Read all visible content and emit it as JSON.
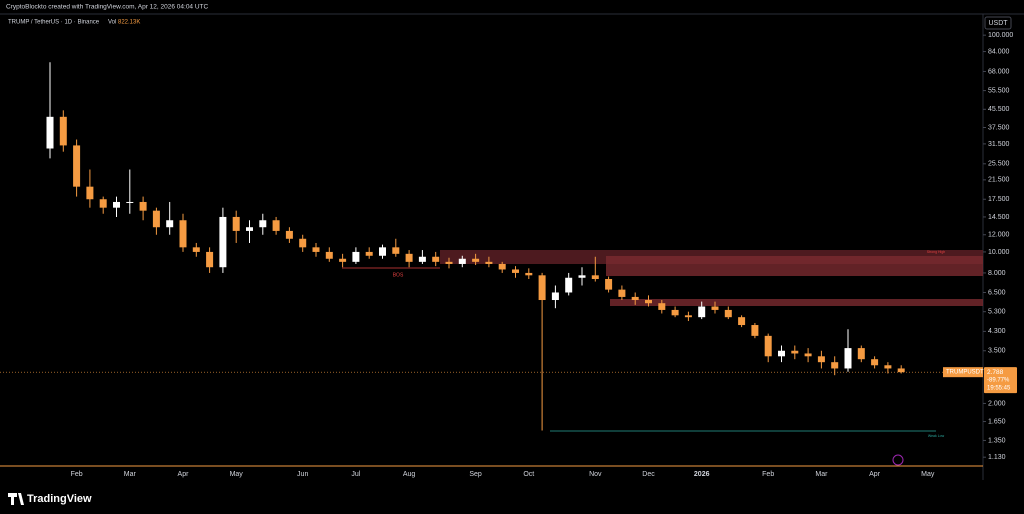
{
  "header": {
    "credit": "CryptoBlockto created with TradingView.com, Apr 12, 2026 04:04 UTC",
    "symbol": "TRUMP / TetherUS · 1D · Binance",
    "volume_label": "Vol",
    "volume": "822.13K"
  },
  "chart_data": {
    "type": "candlestick",
    "categories": [
      null,
      null,
      "Feb",
      null,
      null,
      null,
      "Mar",
      null,
      null,
      null,
      "Apr",
      null,
      null,
      null,
      "May",
      null,
      null,
      null,
      null,
      "Jun",
      null,
      null,
      null,
      "Jul",
      null,
      null,
      null,
      "Aug",
      null,
      null,
      null,
      null,
      "Sep",
      null,
      null,
      null,
      "Oct",
      null,
      null,
      null,
      null,
      "Nov",
      null,
      null,
      null,
      "Dec",
      null,
      null,
      null,
      "2026",
      null,
      null,
      null,
      null,
      "Feb",
      null,
      null,
      null,
      "Mar",
      null,
      null,
      null,
      "Apr",
      null,
      null,
      null,
      "May",
      null
    ],
    "open": [
      30,
      42,
      31,
      20,
      17.5,
      16,
      17,
      17,
      15.5,
      13,
      14,
      10.5,
      10,
      8.5,
      14.5,
      12.5,
      13,
      14,
      12.5,
      11.5,
      10.5,
      10,
      9.3,
      9,
      10,
      9.6,
      10.5,
      9.8,
      9,
      9.5,
      9,
      8.8,
      9.3,
      9,
      8.8,
      8.3,
      8,
      7.8,
      6,
      6.5,
      7.6,
      7.8,
      7.5,
      6.7,
      6.2,
      6,
      5.8,
      5.4,
      5.1,
      5,
      5.6,
      5.4,
      5,
      4.6,
      4.1,
      3.3,
      3.5,
      3.4,
      3.3,
      3.1,
      2.9,
      3.6,
      3.2,
      3,
      2.9,
      null,
      null,
      null
    ],
    "high": [
      75,
      45,
      33,
      24,
      18,
      18,
      24,
      18,
      16,
      17,
      15,
      11,
      10.5,
      16,
      15.5,
      14,
      15,
      14.5,
      13,
      12,
      11,
      10.5,
      9.8,
      10.5,
      10.5,
      10.8,
      11.5,
      10.2,
      10.2,
      10,
      9.4,
      9.6,
      9.8,
      9.5,
      9,
      8.6,
      8.4,
      8,
      7,
      8,
      8.5,
      9.5,
      7.7,
      7,
      6.5,
      6.3,
      6,
      5.6,
      5.3,
      5.9,
      5.9,
      5.6,
      5.1,
      4.7,
      4.2,
      3.7,
      3.7,
      3.6,
      3.5,
      3.3,
      4.4,
      3.7,
      3.3,
      3.1,
      3,
      null,
      null,
      null
    ],
    "low": [
      27,
      29,
      18,
      16,
      15,
      14.5,
      15,
      14,
      12,
      12,
      10,
      9.5,
      8,
      8,
      11,
      11,
      12,
      12,
      11,
      10,
      9.5,
      9,
      8.5,
      8.8,
      9.3,
      9.3,
      9.5,
      8.5,
      8.8,
      8.6,
      8.4,
      8.5,
      8.7,
      8.5,
      8,
      7.6,
      7.5,
      1.5,
      5.5,
      6.3,
      7,
      7.3,
      6.5,
      6,
      5.7,
      5.6,
      5.2,
      5,
      4.8,
      4.9,
      5.2,
      4.9,
      4.5,
      4,
      3.1,
      3.1,
      3.2,
      3.1,
      2.9,
      2.7,
      2.8,
      3.1,
      2.9,
      2.75,
      2.75,
      null,
      null,
      null
    ],
    "close": [
      42,
      31,
      20,
      17.5,
      16,
      17,
      17,
      15.5,
      13,
      14,
      10.5,
      10,
      8.5,
      14.5,
      12.5,
      13,
      14,
      12.5,
      11.5,
      10.5,
      10,
      9.3,
      9,
      10,
      9.6,
      10.5,
      9.8,
      9,
      9.5,
      9,
      8.8,
      9.3,
      9,
      8.8,
      8.3,
      8,
      7.8,
      6,
      6.5,
      7.6,
      7.8,
      7.5,
      6.7,
      6.2,
      6,
      5.8,
      5.4,
      5.1,
      5,
      5.6,
      5.4,
      5,
      4.6,
      4.1,
      3.3,
      3.5,
      3.4,
      3.3,
      3.1,
      2.9,
      3.6,
      3.2,
      3,
      2.9,
      2.788,
      null,
      null,
      null
    ],
    "up_color": "#ffffff",
    "down_color": "#f59b42",
    "log_scale": true,
    "ylim": [
      1.04,
      115
    ],
    "y_unit": "USDT",
    "yticks": [
      {
        "value": 100,
        "label": "100.000"
      },
      {
        "value": 84,
        "label": "84.000"
      },
      {
        "value": 68,
        "label": "68.000"
      },
      {
        "value": 55.5,
        "label": "55.500"
      },
      {
        "value": 45.5,
        "label": "45.500"
      },
      {
        "value": 37.5,
        "label": "37.500"
      },
      {
        "value": 31.5,
        "label": "31.500"
      },
      {
        "value": 25.5,
        "label": "25.500"
      },
      {
        "value": 21.5,
        "label": "21.500"
      },
      {
        "value": 17.5,
        "label": "17.500"
      },
      {
        "value": 14.5,
        "label": "14.500"
      },
      {
        "value": 12,
        "label": "12.000"
      },
      {
        "value": 10,
        "label": "10.000"
      },
      {
        "value": 8,
        "label": "8.000"
      },
      {
        "value": 6.5,
        "label": "6.500"
      },
      {
        "value": 5.3,
        "label": "5.300"
      },
      {
        "value": 4.3,
        "label": "4.300"
      },
      {
        "value": 3.5,
        "label": "3.500"
      },
      {
        "value": 2,
        "label": "2.000"
      },
      {
        "value": 1.65,
        "label": "1.650"
      },
      {
        "value": 1.35,
        "label": "1.350"
      },
      {
        "value": 1.13,
        "label": "1.130"
      }
    ],
    "grid": false,
    "price_label": {
      "symbol": "TRUMPUSDT",
      "price": 2.788,
      "change": "-89.77%",
      "countdown": "19:55:45"
    },
    "annotations": [
      "BOS",
      "Strong High",
      "Weak Low"
    ]
  },
  "footer": {
    "brand": "TradingView"
  }
}
